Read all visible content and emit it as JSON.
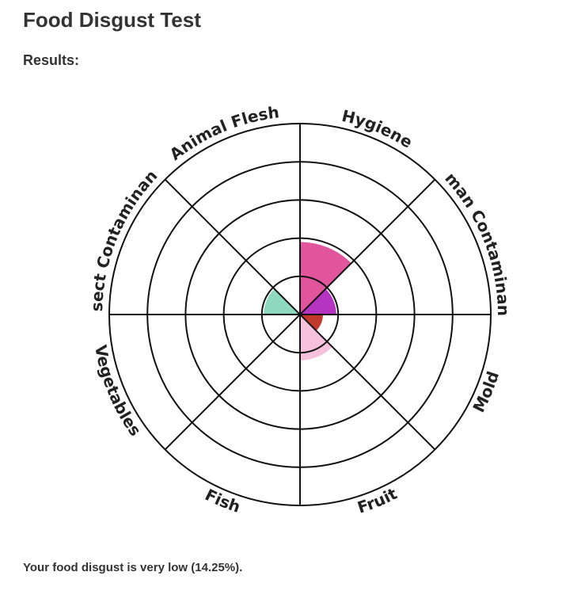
{
  "header": {
    "title": "Food Disgust Test",
    "subtitle": "Results:"
  },
  "chart_data": {
    "type": "polar-area",
    "categories": [
      "Hygiene",
      "Human Contaminants",
      "Mold",
      "Fruit",
      "Fish",
      "Vegetables",
      "Insect Contaminants",
      "Animal Flesh"
    ],
    "values": [
      38,
      19,
      12,
      24,
      0,
      0,
      19,
      0
    ],
    "colors": [
      "#e0559b",
      "#b634c2",
      "#c0392b",
      "#f6c1dd",
      "#8fd8c0",
      "#8fd8c0",
      "#8fd8c0",
      "#e0559b"
    ],
    "ylim": [
      0,
      100
    ],
    "yticks": [
      20,
      40,
      60,
      80,
      100
    ],
    "grid": true
  },
  "footer": {
    "text": "Your food disgust is very low (14.25%)."
  }
}
